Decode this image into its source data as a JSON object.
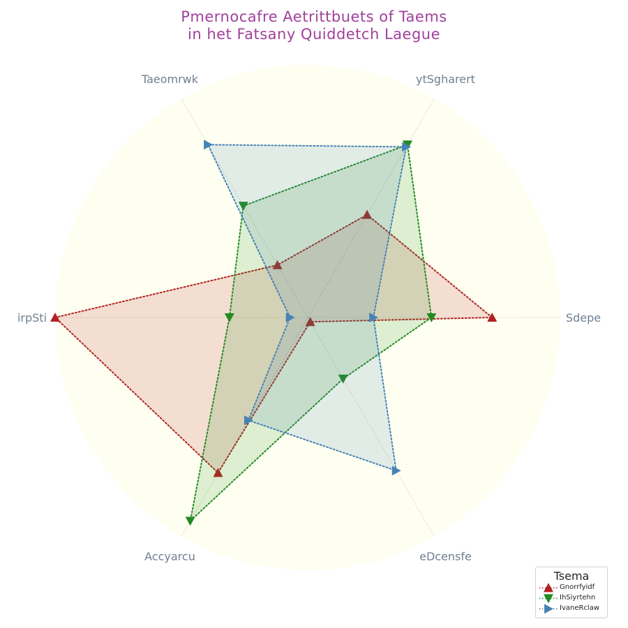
{
  "title_lines": [
    "Pmernocafre Aetrittbuets of Taems",
    "in het Fatsany Quiddetch Laegue"
  ],
  "colors": {
    "background_disc": "#fefff0",
    "grid": "#bbbbbb",
    "axis_label": "#708090",
    "title": "#a0409c"
  },
  "legend": {
    "title": "Tsema",
    "placement": "bottom-right"
  },
  "chart_data": {
    "type": "radar",
    "axes": [
      "Sdepe",
      "ytSgharert",
      "Taeomrwk",
      "irpSti",
      "Accyarcu",
      "eDcensfe"
    ],
    "range": [
      0,
      10
    ],
    "grid": true,
    "series": [
      {
        "name": "Gnorrfyidf",
        "color": "#b22222",
        "marker": "triangle-up",
        "values": [
          7.3,
          4.7,
          2.4,
          10,
          7.1,
          0.2
        ]
      },
      {
        "name": "IhSiyrtehn",
        "color": "#228b22",
        "marker": "triangle-down",
        "values": [
          4.9,
          7.9,
          5.1,
          3.1,
          9.3,
          2.8
        ]
      },
      {
        "name": "IvaneRclaw",
        "color": "#4682b4",
        "marker": "triangle-right",
        "values": [
          2.6,
          7.8,
          7.9,
          0.7,
          4.7,
          7.0
        ]
      }
    ]
  }
}
